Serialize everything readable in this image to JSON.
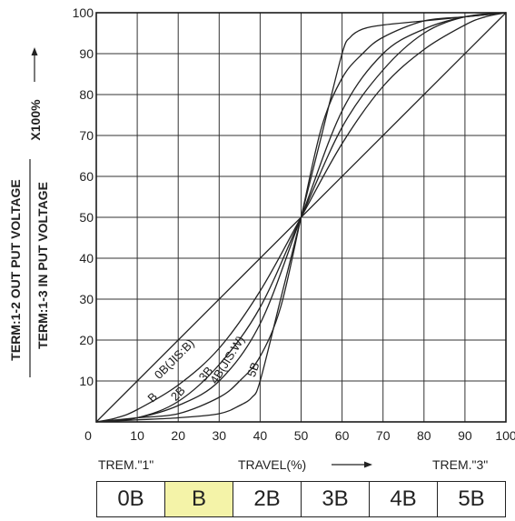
{
  "chart_data": {
    "type": "line",
    "title": "",
    "xlabel": "TRAVEL(%)",
    "ylabel_top": "TERM:1-2 OUT PUT VOLTAGE",
    "ylabel_bottom": "TERM:1-3 IN PUT VOLTAGE",
    "ylabel_suffix": "X100%",
    "xlim": [
      0,
      100
    ],
    "ylim": [
      0,
      100
    ],
    "x_ticks": [
      0,
      10,
      20,
      30,
      40,
      50,
      60,
      70,
      80,
      90,
      100
    ],
    "y_ticks": [
      10,
      20,
      30,
      40,
      50,
      60,
      70,
      80,
      90,
      100
    ],
    "grid": true,
    "end_labels": {
      "left": "TREM.\"1\"",
      "right": "TREM.\"3\""
    },
    "series": [
      {
        "name": "0B(JIS:B)",
        "x": [
          0,
          50,
          100
        ],
        "y": [
          0,
          50,
          100
        ]
      },
      {
        "name": "B",
        "x": [
          0,
          5,
          10,
          20,
          30,
          40,
          50,
          60,
          70,
          80,
          90,
          95,
          100
        ],
        "y": [
          0,
          1,
          3,
          9,
          18,
          32,
          50,
          68,
          82,
          91,
          97,
          99,
          100
        ]
      },
      {
        "name": "2B",
        "x": [
          0,
          10,
          20,
          30,
          40,
          50,
          60,
          70,
          80,
          90,
          100
        ],
        "y": [
          0,
          1,
          5,
          14,
          28,
          50,
          72,
          86,
          95,
          99,
          100
        ]
      },
      {
        "name": "3B",
        "x": [
          0,
          10,
          20,
          30,
          40,
          50,
          60,
          70,
          80,
          90,
          100
        ],
        "y": [
          0,
          1,
          4,
          10,
          24,
          50,
          76,
          90,
          96,
          99,
          100
        ]
      },
      {
        "name": "4B(JIS:W)",
        "x": [
          0,
          10,
          20,
          30,
          35,
          40,
          45,
          50,
          55,
          60,
          65,
          70,
          80,
          90,
          100
        ],
        "y": [
          0,
          1,
          2,
          6,
          10,
          16,
          28,
          50,
          72,
          84,
          90,
          94,
          98,
          99,
          100
        ]
      },
      {
        "name": "5B",
        "x": [
          0,
          10,
          20,
          30,
          35,
          38,
          40,
          45,
          50,
          55,
          60,
          62,
          65,
          70,
          80,
          90,
          100
        ],
        "y": [
          0,
          0.5,
          1,
          2,
          4,
          6,
          10,
          30,
          50,
          70,
          90,
          94,
          96,
          97,
          98,
          99,
          100
        ]
      }
    ]
  },
  "type_table": {
    "cells": [
      "0B",
      "B",
      "2B",
      "3B",
      "4B",
      "5B"
    ],
    "highlight_index": 1,
    "highlight_color": "#f4f3a8"
  }
}
